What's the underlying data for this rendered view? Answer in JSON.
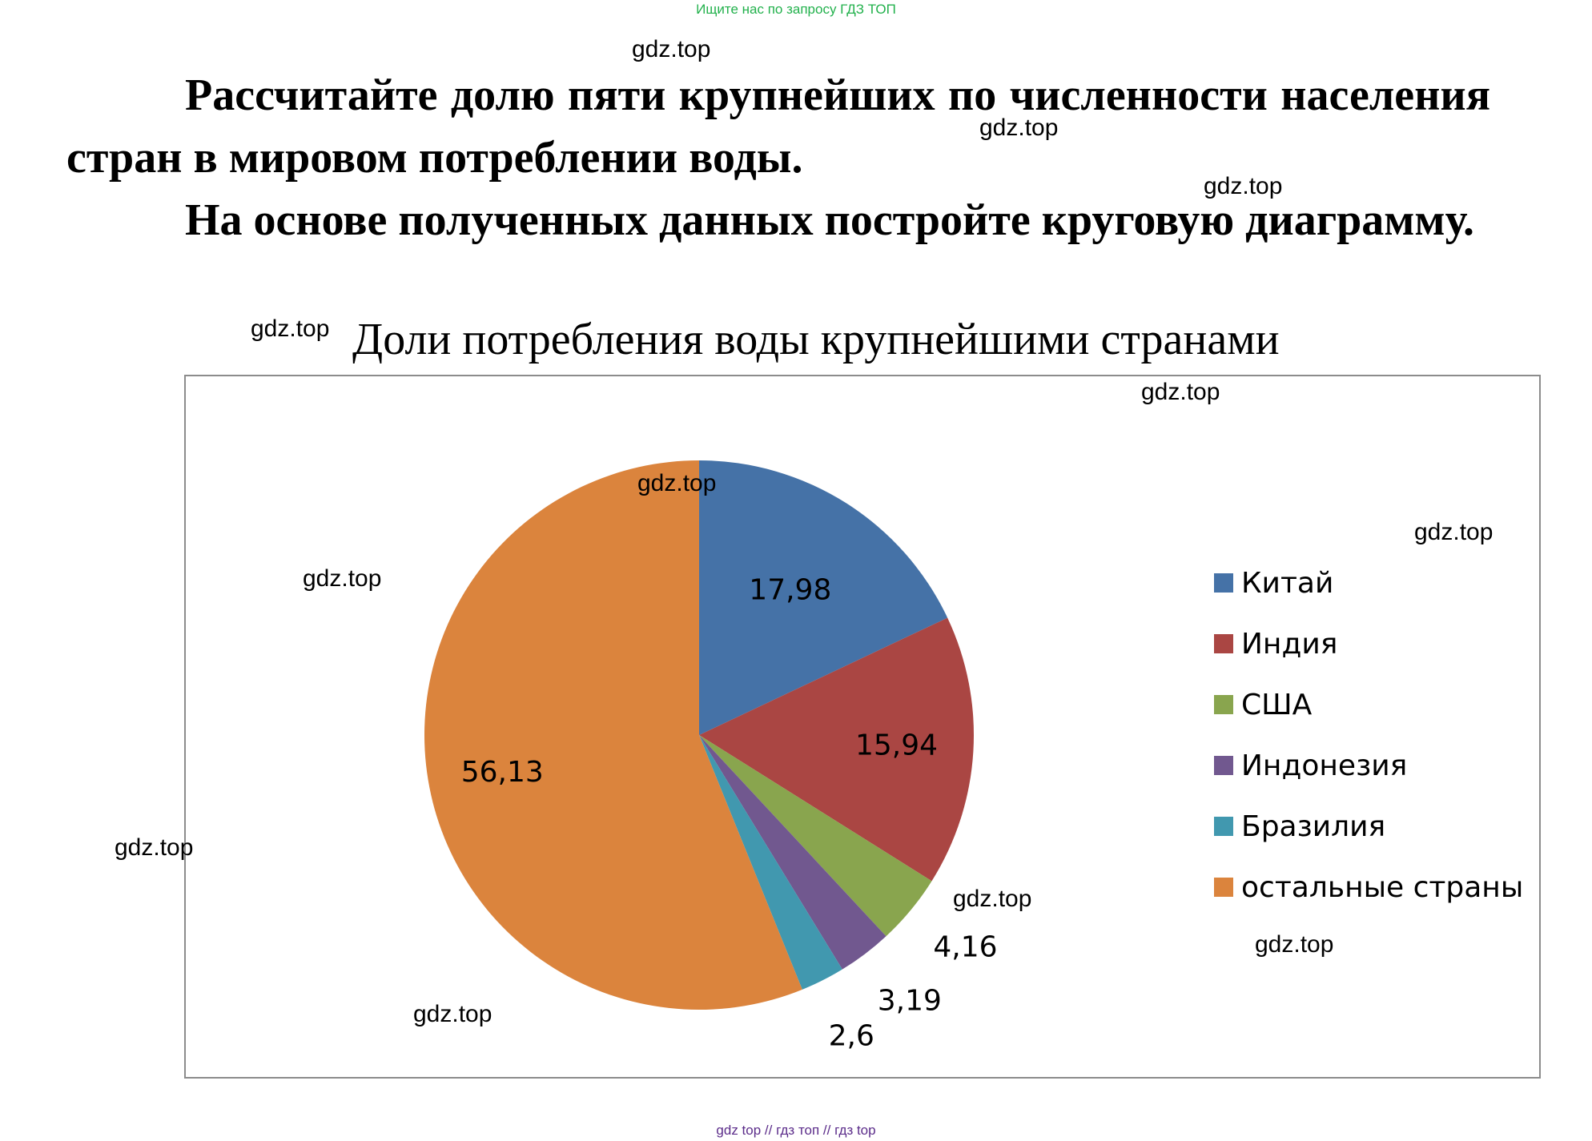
{
  "banner": "Ищите нас по запросу ГДЗ ТОП",
  "task": {
    "paragraph1": "Рассчитайте долю пяти крупнейших по численности населения стран в мировом потреблении воды.",
    "paragraph2": "На основе полученных данных постройте круговую диаграмму."
  },
  "watermark": "gdz.top",
  "footer": "gdz top  //  гдз топ  //  гдз top",
  "chart_data": {
    "type": "pie",
    "title": "Доли потребления воды крупнейшими странами",
    "categories": [
      "Китай",
      "Индия",
      "США",
      "Индонезия",
      "Бразилия",
      "остальные страны"
    ],
    "values": [
      17.98,
      15.94,
      4.16,
      3.19,
      2.6,
      56.13
    ],
    "data_labels": [
      "17,98",
      "15,94",
      "4,16",
      "3,19",
      "2,6",
      "56,13"
    ],
    "colors": [
      "#4572a7",
      "#aa4643",
      "#89a54e",
      "#71588f",
      "#4198af",
      "#db843d"
    ],
    "start_angle_deg": 0,
    "direction": "clockwise",
    "legend_position": "right"
  }
}
